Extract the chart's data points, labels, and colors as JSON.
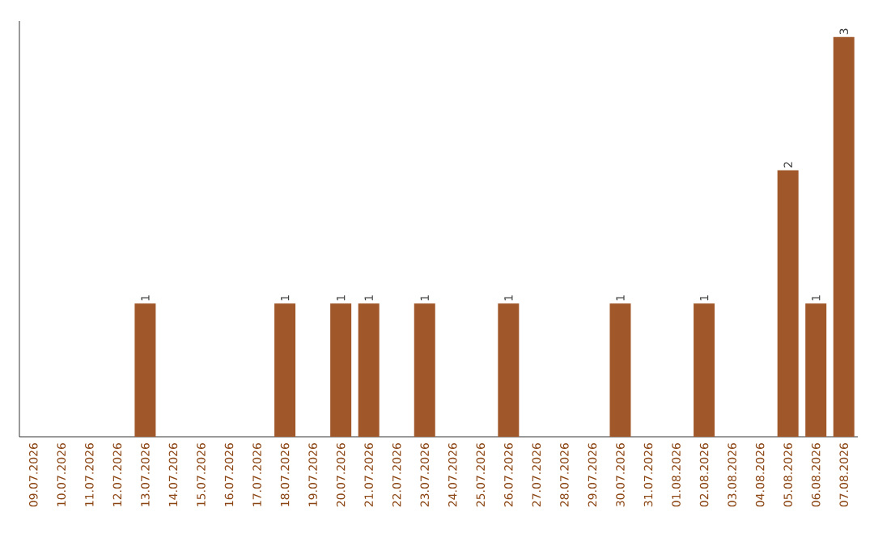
{
  "chart_data": {
    "type": "bar",
    "categories": [
      "09.07.2026",
      "10.07.2026",
      "11.07.2026",
      "12.07.2026",
      "13.07.2026",
      "14.07.2026",
      "15.07.2026",
      "16.07.2026",
      "17.07.2026",
      "18.07.2026",
      "19.07.2026",
      "20.07.2026",
      "21.07.2026",
      "22.07.2026",
      "23.07.2026",
      "24.07.2026",
      "25.07.2026",
      "26.07.2026",
      "27.07.2026",
      "28.07.2026",
      "29.07.2026",
      "30.07.2026",
      "31.07.2026",
      "01.08.2026",
      "02.08.2026",
      "03.08.2026",
      "04.08.2026",
      "05.08.2026",
      "06.08.2026",
      "07.08.2026"
    ],
    "values": [
      0,
      0,
      0,
      0,
      1,
      0,
      0,
      0,
      0,
      1,
      0,
      1,
      1,
      0,
      1,
      0,
      0,
      1,
      0,
      0,
      0,
      1,
      0,
      0,
      1,
      0,
      0,
      2,
      1,
      3
    ],
    "value_labels": [
      null,
      null,
      null,
      null,
      "1",
      null,
      null,
      null,
      null,
      "1",
      null,
      "1",
      "1",
      null,
      "1",
      null,
      null,
      "1",
      null,
      null,
      null,
      "1",
      null,
      null,
      "1",
      null,
      null,
      "2",
      "1",
      "3"
    ],
    "color": "#a0582a",
    "tick_labels": "x"
  }
}
